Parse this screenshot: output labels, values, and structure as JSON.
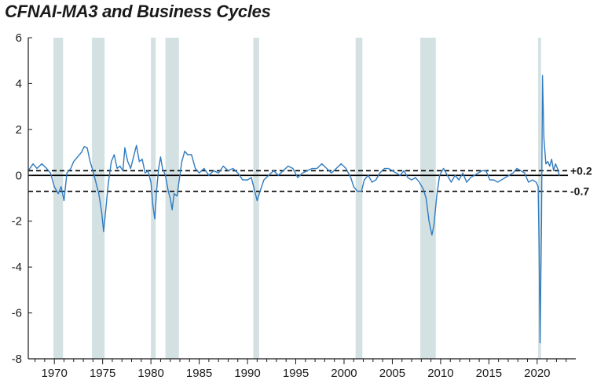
{
  "title": "CFNAI-MA3 and Business Cycles",
  "chart_data": {
    "type": "line",
    "title": "CFNAI-MA3 and Business Cycles",
    "xlabel": "",
    "ylabel": "",
    "xlim": [
      1967.3,
      2024.0
    ],
    "ylim": [
      -8,
      6
    ],
    "x_ticks": [
      1970,
      1975,
      1980,
      1985,
      1990,
      1995,
      2000,
      2005,
      2010,
      2015,
      2020
    ],
    "y_ticks": [
      6,
      4,
      2,
      0,
      -2,
      -4,
      -6,
      -8
    ],
    "grid": false,
    "legend": "none",
    "colors": {
      "series": "#2f7bc0",
      "recession": "#d3e1e3",
      "axis": "#1a1a1a"
    },
    "reference_lines": [
      {
        "value": 0.2,
        "label": "+0.2",
        "style": "dashed"
      },
      {
        "value": 0,
        "label": "",
        "style": "solid"
      },
      {
        "value": -0.7,
        "label": "-0.7",
        "style": "dashed"
      }
    ],
    "recessions": [
      [
        1969.9,
        1970.9
      ],
      [
        1973.9,
        1975.2
      ],
      [
        1980.0,
        1980.5
      ],
      [
        1981.5,
        1982.9
      ],
      [
        1990.6,
        1991.2
      ],
      [
        2001.2,
        2001.9
      ],
      [
        2007.9,
        2009.5
      ],
      [
        2020.1,
        2020.4
      ]
    ],
    "series": [
      {
        "values": [
          [
            1967.3,
            0.2
          ],
          [
            1967.8,
            0.5
          ],
          [
            1968.2,
            0.3
          ],
          [
            1968.7,
            0.5
          ],
          [
            1969.2,
            0.3
          ],
          [
            1969.6,
            0.1
          ],
          [
            1970.0,
            -0.5
          ],
          [
            1970.4,
            -0.8
          ],
          [
            1970.7,
            -0.5
          ],
          [
            1971.0,
            -1.1
          ],
          [
            1971.3,
            0.1
          ],
          [
            1971.7,
            0.3
          ],
          [
            1972.0,
            0.6
          ],
          [
            1972.4,
            0.8
          ],
          [
            1972.8,
            1.0
          ],
          [
            1973.1,
            1.25
          ],
          [
            1973.4,
            1.2
          ],
          [
            1973.7,
            0.6
          ],
          [
            1974.0,
            0.2
          ],
          [
            1974.3,
            -0.3
          ],
          [
            1974.6,
            -0.8
          ],
          [
            1974.9,
            -1.6
          ],
          [
            1975.1,
            -2.45
          ],
          [
            1975.3,
            -1.6
          ],
          [
            1975.6,
            -0.3
          ],
          [
            1975.9,
            0.6
          ],
          [
            1976.2,
            0.9
          ],
          [
            1976.5,
            0.3
          ],
          [
            1976.8,
            0.4
          ],
          [
            1977.1,
            0.2
          ],
          [
            1977.3,
            1.2
          ],
          [
            1977.6,
            0.6
          ],
          [
            1977.9,
            0.3
          ],
          [
            1978.2,
            0.8
          ],
          [
            1978.5,
            1.3
          ],
          [
            1978.8,
            0.6
          ],
          [
            1979.1,
            0.7
          ],
          [
            1979.4,
            0.1
          ],
          [
            1979.7,
            0.2
          ],
          [
            1980.0,
            -0.3
          ],
          [
            1980.2,
            -1.3
          ],
          [
            1980.4,
            -1.9
          ],
          [
            1980.6,
            -0.6
          ],
          [
            1980.8,
            0.3
          ],
          [
            1981.0,
            0.8
          ],
          [
            1981.2,
            0.3
          ],
          [
            1981.5,
            0.0
          ],
          [
            1981.8,
            -0.7
          ],
          [
            1982.0,
            -1.0
          ],
          [
            1982.2,
            -1.5
          ],
          [
            1982.4,
            -0.8
          ],
          [
            1982.7,
            -0.9
          ],
          [
            1982.9,
            -0.3
          ],
          [
            1983.2,
            0.6
          ],
          [
            1983.5,
            1.05
          ],
          [
            1983.8,
            0.9
          ],
          [
            1984.2,
            0.9
          ],
          [
            1984.6,
            0.3
          ],
          [
            1985.0,
            0.1
          ],
          [
            1985.5,
            0.3
          ],
          [
            1986.0,
            0.0
          ],
          [
            1986.5,
            0.2
          ],
          [
            1987.0,
            0.1
          ],
          [
            1987.5,
            0.4
          ],
          [
            1988.0,
            0.2
          ],
          [
            1988.5,
            0.3
          ],
          [
            1989.0,
            0.1
          ],
          [
            1989.5,
            -0.2
          ],
          [
            1990.0,
            -0.2
          ],
          [
            1990.4,
            -0.1
          ],
          [
            1990.7,
            -0.6
          ],
          [
            1991.0,
            -1.1
          ],
          [
            1991.3,
            -0.7
          ],
          [
            1991.7,
            -0.2
          ],
          [
            1992.2,
            0.0
          ],
          [
            1992.7,
            0.2
          ],
          [
            1993.2,
            0.0
          ],
          [
            1993.7,
            0.2
          ],
          [
            1994.2,
            0.4
          ],
          [
            1994.7,
            0.3
          ],
          [
            1995.2,
            -0.1
          ],
          [
            1995.7,
            0.1
          ],
          [
            1996.2,
            0.2
          ],
          [
            1996.7,
            0.3
          ],
          [
            1997.2,
            0.3
          ],
          [
            1997.7,
            0.5
          ],
          [
            1998.2,
            0.3
          ],
          [
            1998.7,
            0.1
          ],
          [
            1999.2,
            0.3
          ],
          [
            1999.7,
            0.5
          ],
          [
            2000.2,
            0.3
          ],
          [
            2000.7,
            -0.1
          ],
          [
            2001.0,
            -0.5
          ],
          [
            2001.4,
            -0.7
          ],
          [
            2001.8,
            -0.7
          ],
          [
            2002.1,
            -0.2
          ],
          [
            2002.5,
            0.0
          ],
          [
            2002.9,
            -0.3
          ],
          [
            2003.3,
            -0.2
          ],
          [
            2003.7,
            0.1
          ],
          [
            2004.2,
            0.3
          ],
          [
            2004.6,
            0.3
          ],
          [
            2005.0,
            0.2
          ],
          [
            2005.4,
            0.1
          ],
          [
            2005.8,
            0.0
          ],
          [
            2006.2,
            0.2
          ],
          [
            2006.6,
            -0.1
          ],
          [
            2007.0,
            -0.2
          ],
          [
            2007.4,
            -0.1
          ],
          [
            2007.8,
            -0.3
          ],
          [
            2008.2,
            -0.6
          ],
          [
            2008.5,
            -1.0
          ],
          [
            2008.8,
            -2.0
          ],
          [
            2009.1,
            -2.6
          ],
          [
            2009.3,
            -2.2
          ],
          [
            2009.6,
            -0.9
          ],
          [
            2009.9,
            0.0
          ],
          [
            2010.3,
            0.3
          ],
          [
            2010.7,
            0.0
          ],
          [
            2011.1,
            -0.3
          ],
          [
            2011.5,
            0.0
          ],
          [
            2011.9,
            -0.2
          ],
          [
            2012.3,
            0.1
          ],
          [
            2012.7,
            -0.3
          ],
          [
            2013.1,
            -0.1
          ],
          [
            2013.5,
            0.0
          ],
          [
            2013.9,
            0.1
          ],
          [
            2014.3,
            0.2
          ],
          [
            2014.7,
            0.2
          ],
          [
            2015.1,
            -0.2
          ],
          [
            2015.5,
            -0.2
          ],
          [
            2015.9,
            -0.3
          ],
          [
            2016.3,
            -0.2
          ],
          [
            2016.7,
            -0.1
          ],
          [
            2017.1,
            0.0
          ],
          [
            2017.5,
            0.1
          ],
          [
            2017.9,
            0.3
          ],
          [
            2018.3,
            0.2
          ],
          [
            2018.7,
            0.1
          ],
          [
            2019.1,
            -0.3
          ],
          [
            2019.5,
            -0.2
          ],
          [
            2019.9,
            -0.3
          ],
          [
            2020.1,
            -0.5
          ],
          [
            2020.2,
            -3.0
          ],
          [
            2020.3,
            -7.3
          ],
          [
            2020.45,
            -2.0
          ],
          [
            2020.55,
            4.35
          ],
          [
            2020.7,
            1.6
          ],
          [
            2020.9,
            0.5
          ],
          [
            2021.1,
            0.6
          ],
          [
            2021.3,
            0.4
          ],
          [
            2021.5,
            0.7
          ],
          [
            2021.7,
            0.2
          ],
          [
            2021.9,
            0.5
          ],
          [
            2022.1,
            0.3
          ],
          [
            2022.3,
            0.0
          ]
        ]
      }
    ]
  }
}
